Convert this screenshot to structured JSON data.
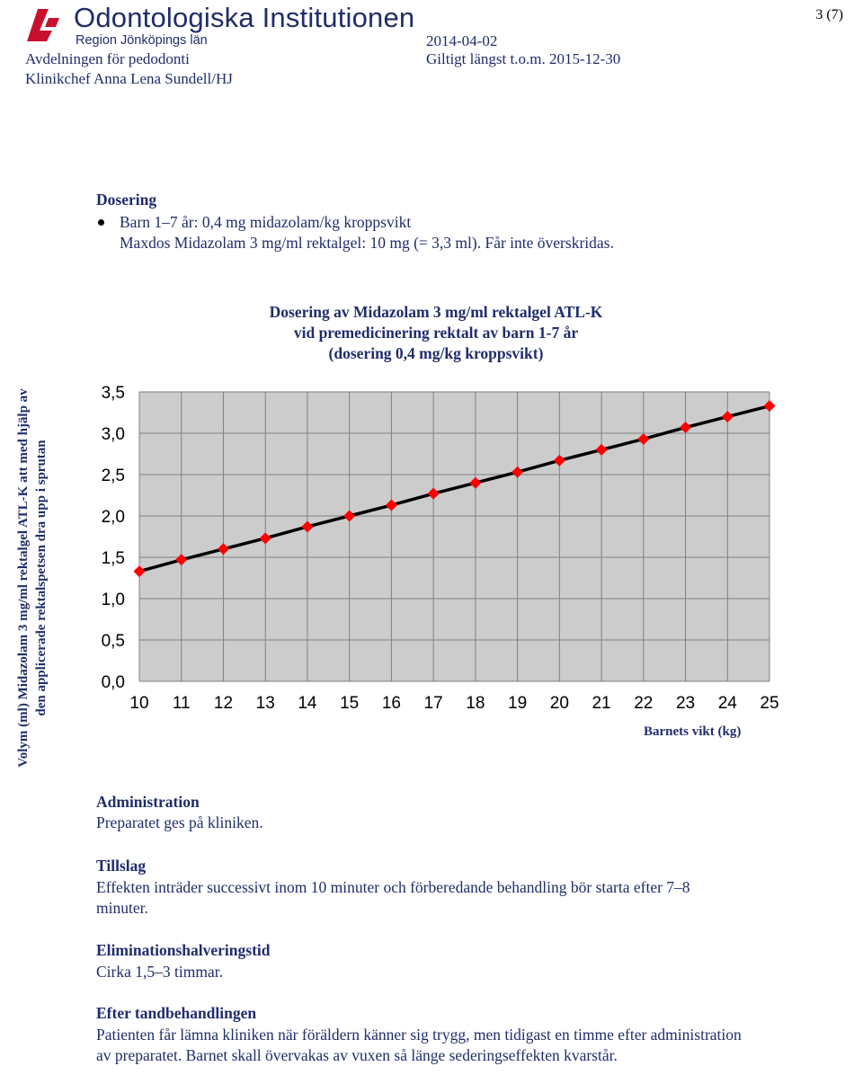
{
  "header": {
    "page_number": "3 (7)",
    "org_name": "Odontologiska Institutionen",
    "region": "Region Jönköpings län",
    "department": "Avdelningen för pedodonti",
    "chief": "Klinikchef Anna Lena Sundell/HJ",
    "date": "2014-04-02",
    "valid_until": "Giltigt längst t.o.m. 2015-12-30"
  },
  "dosering": {
    "heading": "Dosering",
    "bullet_line1": "Barn 1–7 år: 0,4 mg midazolam/kg kroppsvikt",
    "bullet_line2": "Maxdos Midazolam 3 mg/ml rektalgel: 10 mg (= 3,3 ml). Får inte överskridas."
  },
  "chart_data": {
    "type": "line",
    "title_lines": [
      "Dosering av Midazolam 3 mg/ml rektalgel ATL-K",
      "vid premedicinering rektalt av barn 1-7 år",
      "(dosering 0,4 mg/kg kroppsvikt)"
    ],
    "ylabel": "Volym (ml) Midazolam 3 mg/ml rektalgel ATL-K att med hjälp av den applicerade rektalspetsen dra upp i sprutan",
    "xlabel": "Barnets vikt (kg)",
    "x": [
      10,
      11,
      12,
      13,
      14,
      15,
      16,
      17,
      18,
      19,
      20,
      21,
      22,
      23,
      24,
      25
    ],
    "x_tick_labels": [
      "10",
      "11",
      "12",
      "13",
      "14",
      "15",
      "16",
      "17",
      "18",
      "19",
      "20",
      "21",
      "22",
      "23",
      "24",
      "25"
    ],
    "series": [
      {
        "values": [
          1.33,
          1.47,
          1.6,
          1.73,
          1.87,
          2.0,
          2.13,
          2.27,
          2.4,
          2.53,
          2.67,
          2.8,
          2.93,
          3.07,
          3.2,
          3.33
        ]
      }
    ],
    "y_tick_labels": [
      "0,0",
      "0,5",
      "1,0",
      "1,5",
      "2,0",
      "2,5",
      "3,0",
      "3,5"
    ],
    "ylim": [
      0,
      3.5
    ],
    "xlim": [
      10,
      25
    ],
    "grid": true,
    "line_color": "#000000",
    "marker_color": "#ff0000",
    "plot_background": "#cccccc",
    "grid_color": "#808080"
  },
  "sections": [
    {
      "heading": "Administration",
      "text": "Preparatet ges på kliniken."
    },
    {
      "heading": "Tillslag",
      "text": "Effekten inträder successivt inom 10 minuter och förberedande behandling bör starta efter 7–8 minuter."
    },
    {
      "heading": "Eliminationshalveringstid",
      "text": "Cirka 1,5–3 timmar."
    },
    {
      "heading": "Efter tandbehandlingen",
      "text": "Patienten får lämna kliniken när föräldern känner sig trygg, men tidigast en timme efter administration av preparatet. Barnet skall övervakas av vuxen så länge sederingseffekten kvarstår."
    }
  ]
}
